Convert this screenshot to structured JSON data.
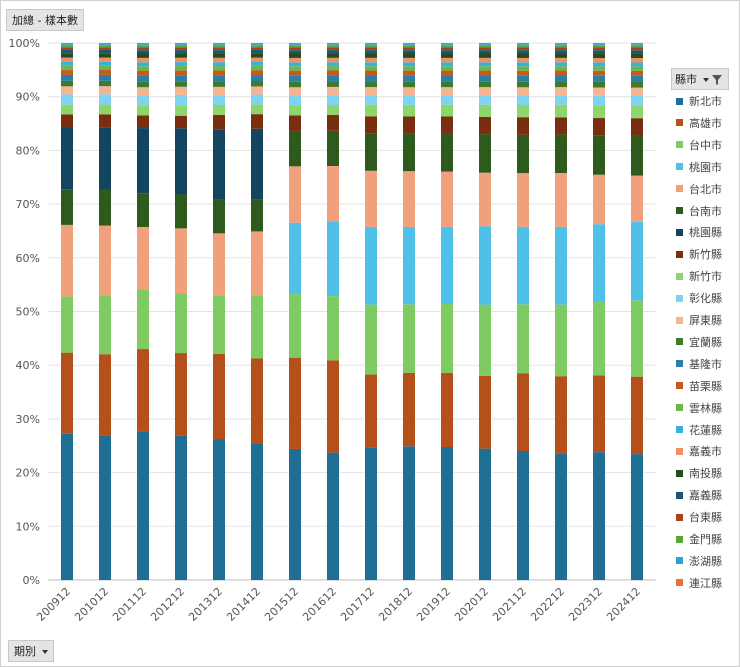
{
  "header": {
    "value_field": "加總 - 樣本數"
  },
  "legend_header": {
    "label": "縣市"
  },
  "footer": {
    "axis_field": "期別"
  },
  "chart_data": {
    "type": "bar",
    "stacked": "percent",
    "ylim": [
      0,
      100
    ],
    "yticks": [
      "0%",
      "10%",
      "20%",
      "30%",
      "40%",
      "50%",
      "60%",
      "70%",
      "80%",
      "90%",
      "100%"
    ],
    "grid": true,
    "legend_position": "right",
    "categories": [
      "200912",
      "201012",
      "201112",
      "201212",
      "201312",
      "201412",
      "201512",
      "201612",
      "201712",
      "201812",
      "201912",
      "202012",
      "202112",
      "202212",
      "202312",
      "202412"
    ],
    "series": [
      {
        "name": "新北市",
        "color": "#1f6e94",
        "values": [
          27.0,
          26.8,
          26.9,
          26.4,
          25.7,
          25.2,
          23.7,
          23.2,
          24.1,
          24.2,
          24.1,
          23.8,
          23.3,
          23.0,
          23.0,
          22.6
        ]
      },
      {
        "name": "高雄市",
        "color": "#b5501a",
        "values": [
          15.0,
          15.0,
          14.9,
          15.1,
          15.5,
          15.6,
          16.5,
          16.8,
          13.2,
          13.3,
          13.4,
          13.2,
          14.0,
          14.0,
          13.8,
          13.9
        ]
      },
      {
        "name": "台中市",
        "color": "#7ecb63",
        "values": [
          10.4,
          10.9,
          10.7,
          10.9,
          10.7,
          11.6,
          11.5,
          11.7,
          12.7,
          12.4,
          12.6,
          12.9,
          12.5,
          13.0,
          13.2,
          13.7
        ]
      },
      {
        "name": "桃園市",
        "color": "#4fc1e9",
        "values": [
          0,
          0,
          0,
          0,
          0,
          0,
          12.9,
          13.6,
          14.1,
          14.0,
          13.9,
          14.2,
          14.0,
          14.1,
          14.0,
          14.1
        ]
      },
      {
        "name": "台北市",
        "color": "#f0a07a",
        "values": [
          13.2,
          12.9,
          11.4,
          11.9,
          11.3,
          11.8,
          10.2,
          10.1,
          10.2,
          10.1,
          10.0,
          9.7,
          9.7,
          9.8,
          8.9,
          8.3
        ]
      },
      {
        "name": "台南市",
        "color": "#2f5a1e",
        "values": [
          6.6,
          6.6,
          6.1,
          6.2,
          6.1,
          5.9,
          6.4,
          6.4,
          6.8,
          6.9,
          7.0,
          7.0,
          6.9,
          7.0,
          7.1,
          7.2
        ]
      },
      {
        "name": "桃園縣",
        "color": "#134560",
        "values": [
          11.3,
          11.6,
          11.8,
          12.1,
          12.8,
          13.0,
          0,
          0,
          0,
          0,
          0,
          0,
          0,
          0,
          0,
          0
        ]
      },
      {
        "name": "新竹縣",
        "color": "#7a2e10",
        "values": [
          2.5,
          2.4,
          2.3,
          2.3,
          2.7,
          2.7,
          2.8,
          2.9,
          3.1,
          3.0,
          3.0,
          3.1,
          3.2,
          3.1,
          3.1,
          3.1
        ]
      },
      {
        "name": "新竹市",
        "color": "#8ed66b",
        "values": [
          1.8,
          1.8,
          1.7,
          1.9,
          1.8,
          1.8,
          1.8,
          1.8,
          2.1,
          2.1,
          2.1,
          2.2,
          2.2,
          2.3,
          2.3,
          2.3
        ]
      },
      {
        "name": "彰化縣",
        "color": "#7ed3f0",
        "values": [
          1.9,
          1.9,
          1.9,
          1.9,
          1.8,
          1.8,
          1.8,
          1.8,
          1.7,
          1.7,
          1.7,
          1.7,
          1.7,
          1.7,
          1.7,
          1.7
        ]
      },
      {
        "name": "屏東縣",
        "color": "#f5b595",
        "values": [
          1.5,
          1.5,
          1.5,
          1.5,
          1.5,
          1.5,
          1.5,
          1.5,
          1.5,
          1.5,
          1.5,
          1.5,
          1.5,
          1.5,
          1.5,
          1.5
        ]
      },
      {
        "name": "宜蘭縣",
        "color": "#3d7a2a",
        "values": [
          1.0,
          1.0,
          1.0,
          1.0,
          1.0,
          1.0,
          1.0,
          1.0,
          1.0,
          1.0,
          1.0,
          1.0,
          1.0,
          1.0,
          1.0,
          1.0
        ]
      },
      {
        "name": "基隆市",
        "color": "#2a7fa8",
        "values": [
          1.1,
          1.1,
          1.1,
          1.1,
          1.1,
          1.1,
          1.1,
          1.1,
          1.1,
          1.1,
          1.1,
          1.1,
          1.1,
          1.1,
          1.1,
          1.1
        ]
      },
      {
        "name": "苗栗縣",
        "color": "#c25a22",
        "values": [
          0.9,
          0.9,
          0.9,
          0.9,
          0.9,
          0.9,
          0.9,
          0.9,
          0.9,
          0.9,
          0.9,
          0.9,
          0.9,
          0.9,
          0.9,
          0.9
        ]
      },
      {
        "name": "雲林縣",
        "color": "#6bb84a",
        "values": [
          0.8,
          0.8,
          0.8,
          0.8,
          0.8,
          0.8,
          0.8,
          0.8,
          0.8,
          0.8,
          0.8,
          0.8,
          0.8,
          0.8,
          0.8,
          0.8
        ]
      },
      {
        "name": "花蓮縣",
        "color": "#3ab0dc",
        "values": [
          0.7,
          0.7,
          0.7,
          0.7,
          0.7,
          0.7,
          0.7,
          0.7,
          0.7,
          0.7,
          0.7,
          0.7,
          0.7,
          0.7,
          0.7,
          0.7
        ]
      },
      {
        "name": "嘉義市",
        "color": "#ee9066",
        "values": [
          0.8,
          0.8,
          0.8,
          0.8,
          0.8,
          0.8,
          0.8,
          0.8,
          0.8,
          0.8,
          0.8,
          0.8,
          0.8,
          0.8,
          0.8,
          0.8
        ]
      },
      {
        "name": "南投縣",
        "color": "#244d18",
        "values": [
          0.8,
          0.8,
          0.8,
          0.8,
          0.8,
          0.8,
          0.8,
          0.8,
          0.8,
          0.8,
          0.8,
          0.8,
          0.8,
          0.8,
          0.8,
          0.8
        ]
      },
      {
        "name": "嘉義縣",
        "color": "#1c5472",
        "values": [
          0.6,
          0.6,
          0.6,
          0.6,
          0.6,
          0.6,
          0.6,
          0.6,
          0.6,
          0.6,
          0.6,
          0.6,
          0.6,
          0.6,
          0.6,
          0.6
        ]
      },
      {
        "name": "台東縣",
        "color": "#a34618",
        "values": [
          0.5,
          0.5,
          0.5,
          0.5,
          0.5,
          0.5,
          0.5,
          0.5,
          0.5,
          0.5,
          0.5,
          0.5,
          0.5,
          0.5,
          0.5,
          0.5
        ]
      },
      {
        "name": "金門縣",
        "color": "#5aa43a",
        "values": [
          0.3,
          0.3,
          0.3,
          0.3,
          0.3,
          0.3,
          0.3,
          0.3,
          0.3,
          0.3,
          0.3,
          0.3,
          0.3,
          0.3,
          0.3,
          0.3
        ]
      },
      {
        "name": "澎湖縣",
        "color": "#2aa3d2",
        "values": [
          0.3,
          0.3,
          0.3,
          0.3,
          0.3,
          0.3,
          0.3,
          0.3,
          0.3,
          0.3,
          0.3,
          0.3,
          0.3,
          0.3,
          0.3,
          0.3
        ]
      },
      {
        "name": "連江縣",
        "color": "#e8703a",
        "values": [
          0.2,
          0.2,
          0.2,
          0.2,
          0.2,
          0.2,
          0.2,
          0.2,
          0.2,
          0.2,
          0.2,
          0.2,
          0.2,
          0.2,
          0.2,
          0.2
        ]
      }
    ]
  }
}
